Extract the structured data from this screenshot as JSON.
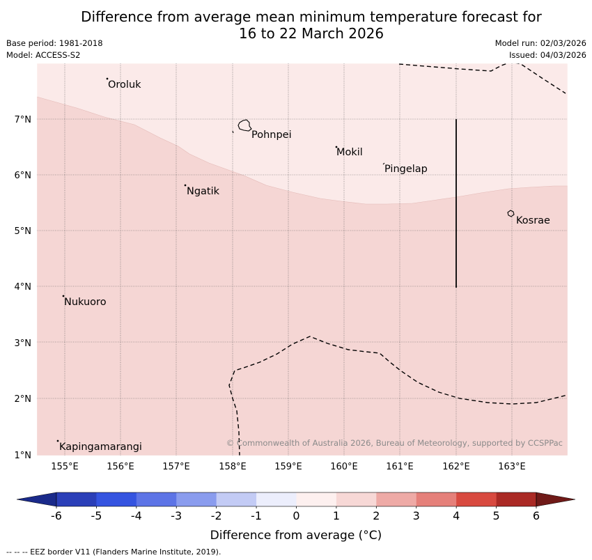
{
  "title": {
    "line1": "Difference from average mean minimum temperature forecast for",
    "line2": "16 to 22 March 2026"
  },
  "meta": {
    "base_period": "Base period: 1981-2018",
    "model": "Model: ACCESS-S2",
    "model_run": "Model run: 02/03/2026",
    "issued": "Issued: 04/03/2026"
  },
  "map": {
    "lat_labels": [
      "7°N",
      "6°N",
      "5°N",
      "4°N",
      "3°N",
      "2°N",
      "1°N"
    ],
    "lon_labels": [
      "155°E",
      "156°E",
      "157°E",
      "158°E",
      "159°E",
      "160°E",
      "161°E",
      "162°E",
      "163°E"
    ],
    "places": [
      {
        "name": "Oroluk"
      },
      {
        "name": "Pohnpei"
      },
      {
        "name": "Mokil"
      },
      {
        "name": "Pingelap"
      },
      {
        "name": "Ngatik"
      },
      {
        "name": "Kosrae"
      },
      {
        "name": "Nukuoro"
      },
      {
        "name": "Kapingamarangi"
      }
    ],
    "copyright": "© Commonwealth of Australia 2026, Bureau of Meteorology, supported by CCSPPac",
    "colors": {
      "band_0_to_1": "#fbeae9",
      "band_1_to_2": "#f5d6d4"
    }
  },
  "colorbar": {
    "ticks": [
      "-6",
      "-5",
      "-4",
      "-3",
      "-2",
      "-1",
      "0",
      "1",
      "2",
      "3",
      "4",
      "5",
      "6"
    ],
    "colors": [
      "#1a2a8a",
      "#2b3fb8",
      "#3554e0",
      "#5d74e6",
      "#8a9cee",
      "#c3cbf5",
      "#eceefc",
      "#fdf0ef",
      "#f7d8d6",
      "#eeaaa6",
      "#e5807a",
      "#d84a40",
      "#aa2a25",
      "#701a18"
    ],
    "label": "Difference from average (°C)"
  },
  "footer": "--  --  -- EEZ border V11 (Flanders Marine Institute, 2019)."
}
